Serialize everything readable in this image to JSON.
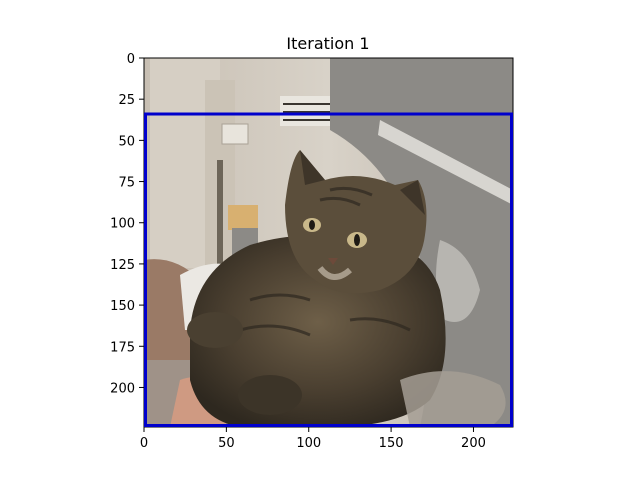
{
  "chart_data": {
    "type": "image",
    "title": "Iteration 1",
    "image_subject": "cat",
    "xlim": [
      0,
      224
    ],
    "ylim": [
      224,
      0
    ],
    "x_ticks": [
      0,
      50,
      100,
      150,
      200
    ],
    "y_ticks": [
      0,
      25,
      50,
      75,
      100,
      125,
      150,
      175,
      200
    ],
    "x_tick_labels": [
      "0",
      "50",
      "100",
      "150",
      "200"
    ],
    "y_tick_labels": [
      "0",
      "25",
      "50",
      "75",
      "100",
      "125",
      "150",
      "175",
      "200"
    ],
    "bounding_box": {
      "x_min": 0,
      "y_min": 34,
      "x_max": 224,
      "y_max": 224,
      "color": "#0000cc"
    }
  }
}
